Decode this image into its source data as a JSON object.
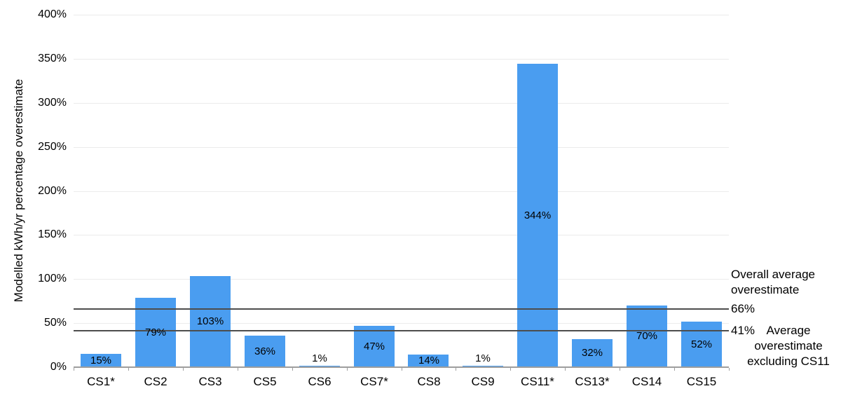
{
  "chart_data": {
    "type": "bar",
    "ylabel": "Modelled kWh/yr percentage overestimate",
    "categories": [
      "CS1*",
      "CS2",
      "CS3",
      "CS5",
      "CS6",
      "CS7*",
      "CS8",
      "CS9",
      "CS11*",
      "CS13*",
      "CS14",
      "CS15"
    ],
    "values": [
      15,
      79,
      103,
      36,
      1,
      47,
      14,
      1,
      344,
      32,
      70,
      52
    ],
    "bar_value_labels": [
      "15%",
      "79%",
      "103%",
      "36%",
      "1%",
      "47%",
      "14%",
      "1%",
      "344%",
      "32%",
      "70%",
      "52%"
    ],
    "ylim": [
      0,
      400
    ],
    "yticks": [
      {
        "value": 0,
        "label": "0%"
      },
      {
        "value": 50,
        "label": "50%"
      },
      {
        "value": 100,
        "label": "100%"
      },
      {
        "value": 150,
        "label": "150%"
      },
      {
        "value": 200,
        "label": "200%"
      },
      {
        "value": 250,
        "label": "250%"
      },
      {
        "value": 300,
        "label": "300%"
      },
      {
        "value": 350,
        "label": "350%"
      },
      {
        "value": 400,
        "label": "400%"
      }
    ],
    "grid": true,
    "legend": "none",
    "bar_color": "#4a9df0",
    "grid_color": "#ebebeb",
    "axis_color": "#9e9e9e",
    "reference_line_color": "#4d4d4d",
    "text_color": "#000000",
    "reference_lines": [
      {
        "value": 66,
        "label": "66%",
        "annotation": "Overall average overestimate"
      },
      {
        "value": 41,
        "label": "41%",
        "annotation": "Average overestimate excluding CS11"
      }
    ]
  }
}
